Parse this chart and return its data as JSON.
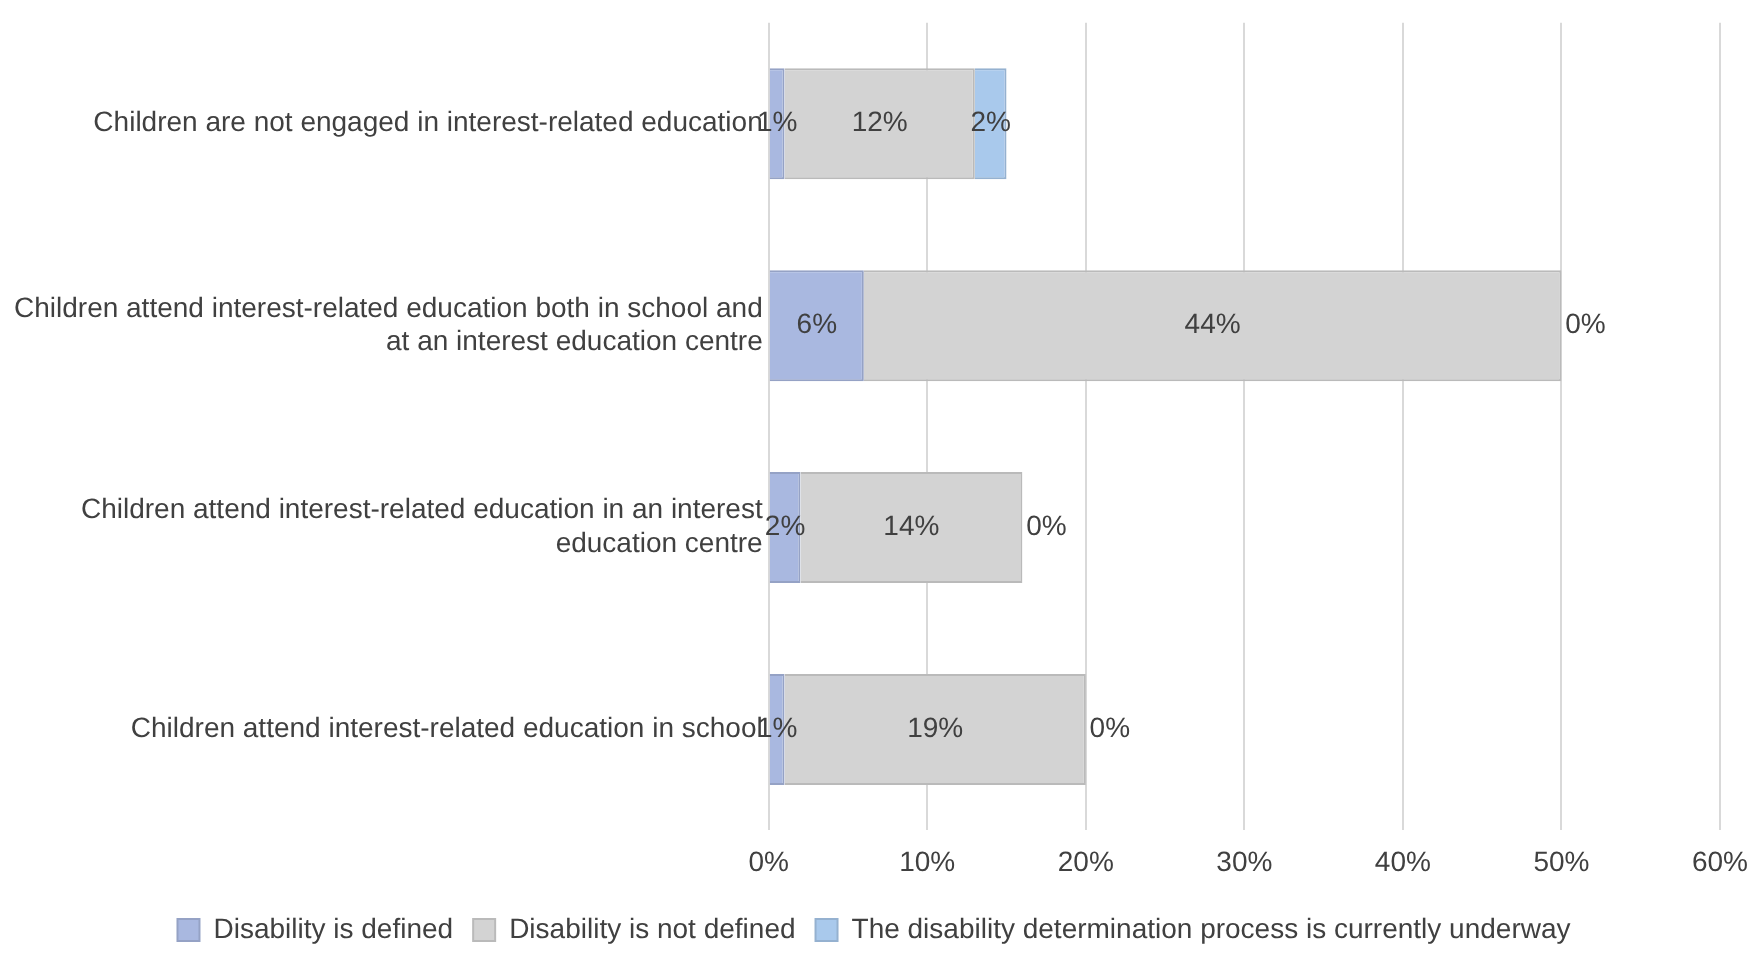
{
  "chart_data": {
    "type": "bar",
    "orientation": "horizontal",
    "stacked": true,
    "categories": [
      "Children are not engaged in interest-related education",
      "Children attend interest-related education both in school and at an interest education centre",
      "Children attend interest-related education in an interest education centre",
      "Children attend interest-related education in school"
    ],
    "series": [
      {
        "name": "Disability is defined",
        "color": "#a9b8e0",
        "values": [
          1,
          6,
          2,
          1
        ],
        "value_labels": [
          "1%",
          "6%",
          "2%",
          "1%"
        ]
      },
      {
        "name": "Disability is not defined",
        "color": "#d3d3d3",
        "values": [
          12,
          44,
          14,
          19
        ],
        "value_labels": [
          "12%",
          "44%",
          "14%",
          "19%"
        ]
      },
      {
        "name": "The disability determination process is currently underway",
        "color": "#a9c9ec",
        "values": [
          2,
          0,
          0,
          0
        ],
        "value_labels": [
          "2%",
          "0%",
          "0%",
          "0%"
        ]
      }
    ],
    "xlim": [
      0,
      60
    ],
    "xticks": [
      {
        "value": 0,
        "label": "0%"
      },
      {
        "value": 10,
        "label": "10%"
      },
      {
        "value": 20,
        "label": "20%"
      },
      {
        "value": 30,
        "label": "30%"
      },
      {
        "value": 40,
        "label": "40%"
      },
      {
        "value": 50,
        "label": "50%"
      },
      {
        "value": 60,
        "label": "60%"
      }
    ],
    "grid": "x",
    "legend": "bottom"
  }
}
